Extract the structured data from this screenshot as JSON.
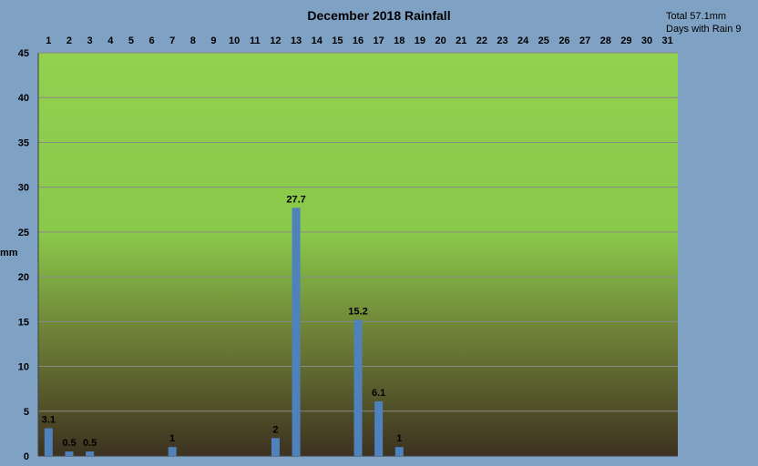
{
  "header": {
    "title": "December 2018 Rainfall",
    "total": "Total 57.1mm",
    "days_with_rain": "Days with Rain 9"
  },
  "chart_data": {
    "type": "bar",
    "title": "December 2018 Rainfall",
    "xlabel": "",
    "ylabel": "mm",
    "ylim": [
      0,
      45
    ],
    "yticks": [
      0,
      5,
      10,
      15,
      20,
      25,
      30,
      35,
      40,
      45
    ],
    "x_axis_position": "top",
    "grid": true,
    "legend": "none",
    "categories": [
      "1",
      "2",
      "3",
      "4",
      "5",
      "6",
      "7",
      "8",
      "9",
      "10",
      "11",
      "12",
      "13",
      "14",
      "15",
      "16",
      "17",
      "18",
      "19",
      "20",
      "21",
      "22",
      "23",
      "24",
      "25",
      "26",
      "27",
      "28",
      "29",
      "30",
      "31"
    ],
    "values": [
      3.1,
      0.5,
      0.5,
      0,
      0,
      0,
      1,
      0,
      0,
      0,
      0,
      2,
      27.7,
      0,
      0,
      15.2,
      6.1,
      1,
      0,
      0,
      0,
      0,
      0,
      0,
      0,
      0,
      0,
      0,
      0,
      0,
      0
    ],
    "data_labels": [
      "3.1",
      "0.5",
      "0.5",
      "",
      "",
      "",
      "1",
      "",
      "",
      "",
      "",
      "2",
      "27.7",
      "",
      "",
      "15.2",
      "6.1",
      "1",
      "",
      "",
      "",
      "",
      "",
      "",
      "",
      "",
      "",
      "",
      "",
      "",
      ""
    ],
    "colors": {
      "bar": "#4f81bd",
      "plot_top": "#92d050",
      "plot_bottom": "#3d3220",
      "background": "#7fa1c4",
      "gridline": "#8a8a8a"
    }
  }
}
